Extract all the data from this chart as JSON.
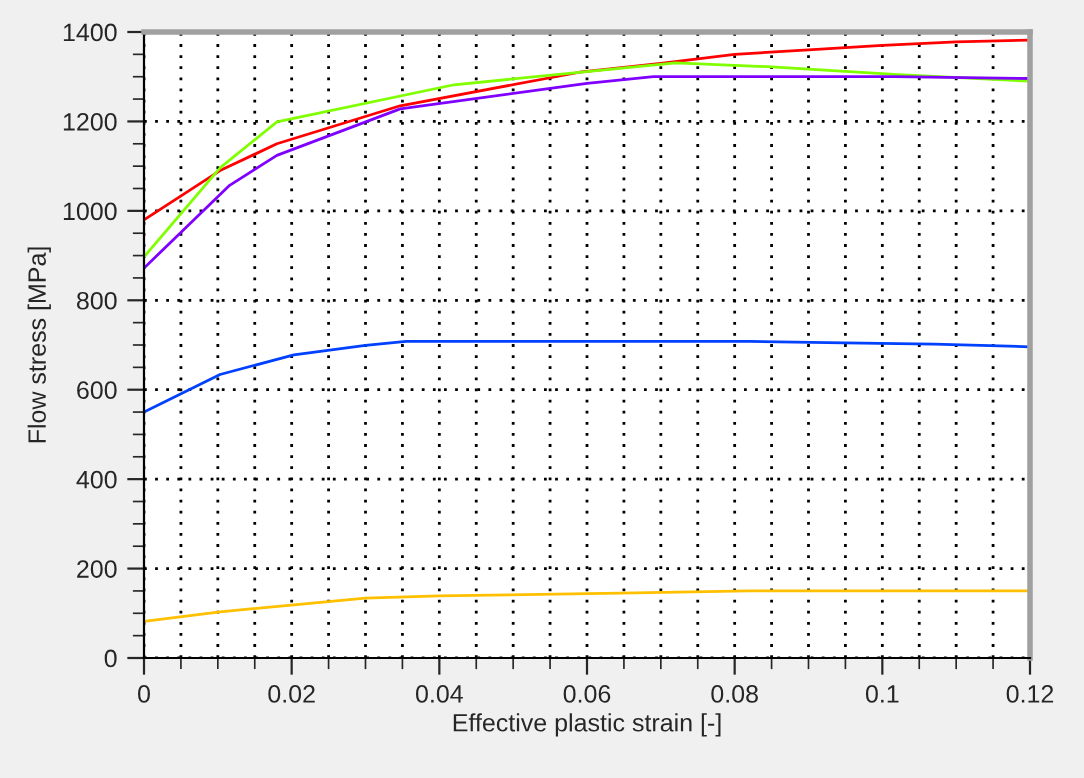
{
  "chart_data": {
    "type": "line",
    "xlabel": "Effective plastic strain [-]",
    "ylabel": "Flow stress [MPa]",
    "xlim": [
      0,
      0.12
    ],
    "ylim": [
      0,
      1400
    ],
    "xticks": [
      0,
      {
        "value": 0.005,
        "label": null
      },
      0.02,
      {
        "value": 0.01,
        "label": null
      },
      {
        "value": 0.015,
        "label": null
      },
      {
        "value": 0.025,
        "label": null
      },
      0.04,
      {
        "value": 0.03,
        "label": null
      },
      {
        "value": 0.035,
        "label": null
      },
      {
        "value": 0.045,
        "label": null
      },
      0.06,
      {
        "value": 0.05,
        "label": null
      },
      {
        "value": 0.055,
        "label": null
      },
      {
        "value": 0.065,
        "label": null
      },
      0.08,
      {
        "value": 0.07,
        "label": null
      },
      {
        "value": 0.075,
        "label": null
      },
      {
        "value": 0.085,
        "label": null
      },
      0.1,
      {
        "value": 0.09,
        "label": null
      },
      {
        "value": 0.095,
        "label": null
      },
      {
        "value": 0.105,
        "label": null
      },
      0.12,
      {
        "value": 0.11,
        "label": null
      },
      {
        "value": 0.115,
        "label": null
      }
    ],
    "yticks": [
      0,
      200,
      400,
      600,
      800,
      1000,
      1200,
      1400,
      {
        "value": 50,
        "label": null
      },
      {
        "value": 100,
        "label": null
      },
      {
        "value": 150,
        "label": null
      },
      {
        "value": 250,
        "label": null
      },
      {
        "value": 300,
        "label": null
      },
      {
        "value": 350,
        "label": null
      },
      {
        "value": 450,
        "label": null
      },
      {
        "value": 500,
        "label": null
      },
      {
        "value": 550,
        "label": null
      },
      {
        "value": 650,
        "label": null
      },
      {
        "value": 700,
        "label": null
      },
      {
        "value": 750,
        "label": null
      },
      {
        "value": 850,
        "label": null
      },
      {
        "value": 900,
        "label": null
      },
      {
        "value": 950,
        "label": null
      },
      {
        "value": 1050,
        "label": null
      },
      {
        "value": 1100,
        "label": null
      },
      {
        "value": 1150,
        "label": null
      },
      {
        "value": 1250,
        "label": null
      },
      {
        "value": 1300,
        "label": null
      },
      {
        "value": 1350,
        "label": null
      }
    ],
    "grid": true,
    "line_style": "solid",
    "marker": "none",
    "series": [
      {
        "color": "#ff0000",
        "x": [
          0,
          0.0103,
          0.018,
          0.0347,
          0.059,
          0.07,
          0.08,
          0.09,
          0.1,
          0.11,
          0.12
        ],
        "values": [
          980,
          1090,
          1150,
          1235,
          1310,
          1330,
          1350,
          1360,
          1370,
          1378,
          1382
        ]
      },
      {
        "color": "#80ff00",
        "x": [
          0,
          0.0103,
          0.018,
          0.042,
          0.072,
          0.085,
          0.1016,
          0.12
        ],
        "values": [
          897,
          1096,
          1199,
          1282,
          1331,
          1322,
          1305,
          1290
        ]
      },
      {
        "color": "#8000ff",
        "x": [
          0,
          0.0116,
          0.018,
          0.0347,
          0.06,
          0.069,
          0.1016,
          0.12
        ],
        "values": [
          872,
          1057,
          1124,
          1228,
          1285,
          1300,
          1300,
          1296
        ]
      },
      {
        "color": "#0040ff",
        "x": [
          0,
          0.0103,
          0.0203,
          0.03,
          0.0355,
          0.082,
          0.0948,
          0.107,
          0.12
        ],
        "values": [
          550,
          634,
          678,
          699,
          708,
          708,
          705,
          702,
          696
        ]
      },
      {
        "color": "#ffc000",
        "x": [
          0,
          0.0103,
          0.0203,
          0.03,
          0.04,
          0.0645,
          0.082,
          0.12
        ],
        "values": [
          82,
          103,
          119,
          134,
          139,
          145,
          150,
          150
        ]
      }
    ]
  }
}
